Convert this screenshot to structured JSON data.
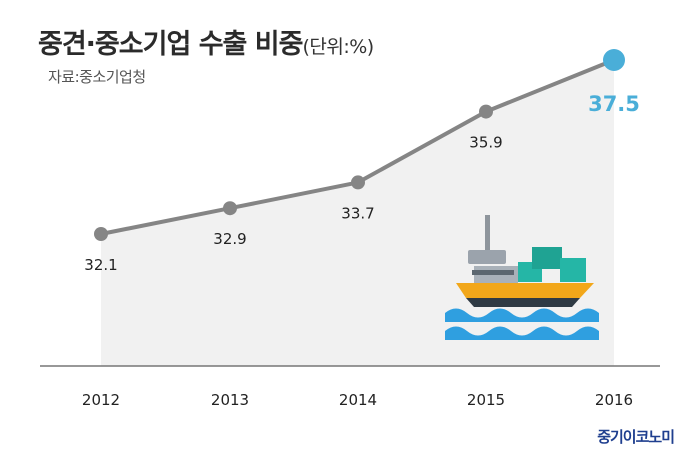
{
  "header": {
    "title": "중견·중소기업 수출 비중",
    "unit": "(단위:%)",
    "source": "자료:중소기업청"
  },
  "brand": "중기이코노미",
  "colors": {
    "line": "#858585",
    "marker": "#858585",
    "highlight_marker": "#4aaed8",
    "area": "#f1f1f1",
    "baseline": "#777777"
  },
  "illustration": {
    "icon": "cargo-ship-icon"
  },
  "chart_data": {
    "type": "line",
    "categories": [
      "2012",
      "2013",
      "2014",
      "2015",
      "2016"
    ],
    "values": [
      32.1,
      32.9,
      33.7,
      35.9,
      37.5
    ],
    "value_labels": [
      "32.1",
      "32.9",
      "33.7",
      "35.9",
      "37.5"
    ],
    "highlight_index": 4,
    "title": "중견·중소기업 수출 비중",
    "xlabel": "",
    "ylabel": "",
    "grid": false,
    "legend": "none"
  }
}
